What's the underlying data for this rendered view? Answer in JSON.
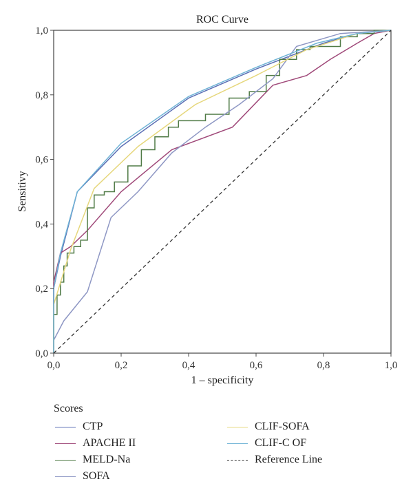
{
  "chart_data": {
    "type": "line",
    "title": "ROC Curve",
    "xlabel": "1 – specificity",
    "ylabel": "Sensitivy",
    "xlim": [
      0,
      1
    ],
    "ylim": [
      0,
      1
    ],
    "x_ticks": [
      "0,0",
      "0,2",
      "0,4",
      "0,6",
      "0,8",
      "1,0"
    ],
    "y_ticks": [
      "0,0",
      "0,2",
      "0,4",
      "0,6",
      "0,8",
      "1,0"
    ],
    "grid": false,
    "legend_title": "Scores",
    "legend_position": "bottom",
    "series": [
      {
        "name": "CTP",
        "color": "#5b6fb5",
        "style": "solid",
        "points": [
          [
            0,
            0
          ],
          [
            0,
            0.2
          ],
          [
            0.02,
            0.3
          ],
          [
            0.07,
            0.5
          ],
          [
            0.2,
            0.64
          ],
          [
            0.4,
            0.79
          ],
          [
            0.6,
            0.88
          ],
          [
            0.8,
            0.96
          ],
          [
            0.9,
            0.99
          ],
          [
            1,
            1
          ]
        ]
      },
      {
        "name": "APACHE II",
        "color": "#a04a7a",
        "style": "solid",
        "points": [
          [
            0,
            0
          ],
          [
            0,
            0.22
          ],
          [
            0.02,
            0.31
          ],
          [
            0.05,
            0.33
          ],
          [
            0.1,
            0.38
          ],
          [
            0.2,
            0.5
          ],
          [
            0.35,
            0.63
          ],
          [
            0.53,
            0.7
          ],
          [
            0.65,
            0.83
          ],
          [
            0.75,
            0.86
          ],
          [
            0.82,
            0.91
          ],
          [
            0.9,
            0.96
          ],
          [
            0.95,
            0.99
          ],
          [
            1,
            1
          ]
        ]
      },
      {
        "name": "MELD-Na",
        "color": "#4f7a45",
        "style": "step",
        "points": [
          [
            0,
            0
          ],
          [
            0,
            0.08
          ],
          [
            0.01,
            0.12
          ],
          [
            0.02,
            0.18
          ],
          [
            0.03,
            0.22
          ],
          [
            0.04,
            0.27
          ],
          [
            0.06,
            0.31
          ],
          [
            0.08,
            0.33
          ],
          [
            0.1,
            0.35
          ],
          [
            0.12,
            0.45
          ],
          [
            0.15,
            0.49
          ],
          [
            0.18,
            0.5
          ],
          [
            0.22,
            0.53
          ],
          [
            0.26,
            0.58
          ],
          [
            0.3,
            0.63
          ],
          [
            0.34,
            0.67
          ],
          [
            0.37,
            0.7
          ],
          [
            0.45,
            0.72
          ],
          [
            0.52,
            0.74
          ],
          [
            0.58,
            0.79
          ],
          [
            0.63,
            0.81
          ],
          [
            0.67,
            0.86
          ],
          [
            0.72,
            0.91
          ],
          [
            0.76,
            0.94
          ],
          [
            0.8,
            0.95
          ],
          [
            0.85,
            0.95
          ],
          [
            0.9,
            0.98
          ],
          [
            0.95,
            0.99
          ],
          [
            1,
            1
          ]
        ]
      },
      {
        "name": "SOFA",
        "color": "#8e97c4",
        "style": "solid",
        "points": [
          [
            0,
            0
          ],
          [
            0,
            0.04
          ],
          [
            0.03,
            0.1
          ],
          [
            0.1,
            0.19
          ],
          [
            0.17,
            0.42
          ],
          [
            0.25,
            0.5
          ],
          [
            0.35,
            0.62
          ],
          [
            0.45,
            0.7
          ],
          [
            0.55,
            0.77
          ],
          [
            0.65,
            0.85
          ],
          [
            0.72,
            0.95
          ],
          [
            0.85,
            0.99
          ],
          [
            1,
            1
          ]
        ]
      },
      {
        "name": "CLIF-SOFA",
        "color": "#e6d77c",
        "style": "solid",
        "points": [
          [
            0,
            0
          ],
          [
            0,
            0.15
          ],
          [
            0.05,
            0.32
          ],
          [
            0.12,
            0.51
          ],
          [
            0.25,
            0.64
          ],
          [
            0.42,
            0.77
          ],
          [
            0.6,
            0.86
          ],
          [
            0.75,
            0.94
          ],
          [
            0.9,
            0.99
          ],
          [
            1,
            1
          ]
        ]
      },
      {
        "name": "CLIF-C OF",
        "color": "#6fb3d6",
        "style": "solid",
        "points": [
          [
            0,
            0
          ],
          [
            0,
            0.2
          ],
          [
            0.02,
            0.31
          ],
          [
            0.07,
            0.5
          ],
          [
            0.2,
            0.65
          ],
          [
            0.4,
            0.795
          ],
          [
            0.6,
            0.885
          ],
          [
            0.78,
            0.96
          ],
          [
            0.9,
            0.99
          ],
          [
            1,
            1
          ]
        ]
      },
      {
        "name": "Reference Line",
        "color": "#333333",
        "style": "dashed",
        "points": [
          [
            0,
            0
          ],
          [
            1,
            1
          ]
        ]
      }
    ]
  }
}
